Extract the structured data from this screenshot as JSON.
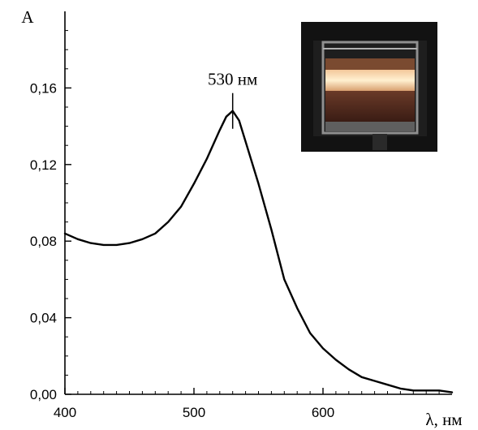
{
  "chart_data": {
    "type": "line",
    "title": "",
    "xlabel": "λ, нм",
    "ylabel": "A",
    "xlim": [
      400,
      700
    ],
    "ylim": [
      0,
      0.2
    ],
    "x_ticks": [
      400,
      500,
      600
    ],
    "x_tick_labels": [
      "400",
      "500",
      "600"
    ],
    "y_ticks": [
      0,
      0.04,
      0.08,
      0.12,
      0.16
    ],
    "y_tick_labels": [
      "0,00",
      "0,04",
      "0,08",
      "0,12",
      "0,16"
    ],
    "grid": false,
    "series": [
      {
        "name": "",
        "x": [
          400,
          410,
          420,
          430,
          440,
          450,
          460,
          470,
          480,
          490,
          500,
          510,
          520,
          525,
          530,
          535,
          540,
          550,
          560,
          570,
          580,
          590,
          600,
          610,
          620,
          630,
          640,
          650,
          660,
          670,
          680,
          690,
          700
        ],
        "y": [
          0.084,
          0.081,
          0.079,
          0.078,
          0.078,
          0.079,
          0.081,
          0.084,
          0.09,
          0.098,
          0.11,
          0.123,
          0.138,
          0.145,
          0.148,
          0.143,
          0.132,
          0.11,
          0.086,
          0.06,
          0.045,
          0.032,
          0.024,
          0.018,
          0.013,
          0.009,
          0.007,
          0.005,
          0.003,
          0.002,
          0.002,
          0.002,
          0.001
        ]
      }
    ],
    "annotations": [
      {
        "text": "530 нм",
        "x": 530,
        "y": 0.148
      }
    ],
    "inset": {
      "description_icon": "cuvette-photo"
    }
  }
}
